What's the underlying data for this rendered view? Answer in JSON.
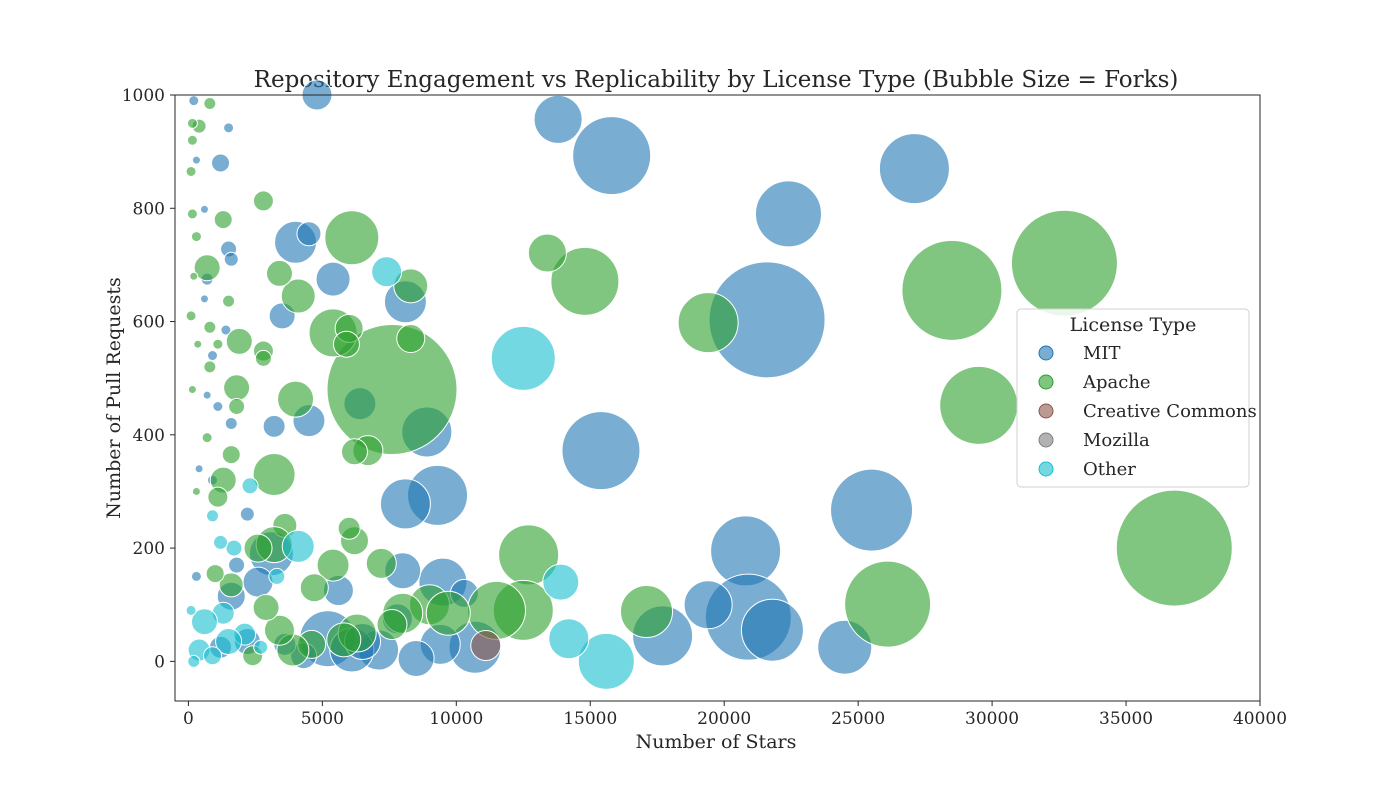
{
  "chart_data": {
    "type": "scatter",
    "title": "Repository Engagement vs Replicability by License Type (Bubble Size = Forks)",
    "xlabel": "Number of Stars",
    "ylabel": "Number of Pull Requests",
    "xlim": [
      -500,
      40000
    ],
    "ylim": [
      -70,
      1000
    ],
    "xticks": [
      0,
      5000,
      10000,
      15000,
      20000,
      25000,
      30000,
      35000,
      40000
    ],
    "yticks": [
      0,
      200,
      400,
      600,
      800,
      1000
    ],
    "grid": false,
    "legend": {
      "title": "License Type",
      "placement": "center-right"
    },
    "series": [
      {
        "name": "MIT",
        "color": "#1f77b4",
        "points": [
          {
            "x": 4800,
            "y": 1000,
            "r": 15
          },
          {
            "x": 13800,
            "y": 957,
            "r": 24
          },
          {
            "x": 15800,
            "y": 893,
            "r": 39
          },
          {
            "x": 27100,
            "y": 870,
            "r": 35
          },
          {
            "x": 22400,
            "y": 790,
            "r": 33
          },
          {
            "x": 21600,
            "y": 603,
            "r": 58
          },
          {
            "x": 15400,
            "y": 372,
            "r": 39
          },
          {
            "x": 25500,
            "y": 267,
            "r": 41
          },
          {
            "x": 20800,
            "y": 195,
            "r": 35
          },
          {
            "x": 20900,
            "y": 78,
            "r": 43
          },
          {
            "x": 21800,
            "y": 55,
            "r": 31
          },
          {
            "x": 17700,
            "y": 45,
            "r": 30
          },
          {
            "x": 19400,
            "y": 100,
            "r": 24
          },
          {
            "x": 24500,
            "y": 25,
            "r": 27
          },
          {
            "x": 9300,
            "y": 293,
            "r": 30
          },
          {
            "x": 8900,
            "y": 405,
            "r": 25
          },
          {
            "x": 8100,
            "y": 278,
            "r": 25
          },
          {
            "x": 8100,
            "y": 635,
            "r": 21
          },
          {
            "x": 4000,
            "y": 740,
            "r": 21
          },
          {
            "x": 4500,
            "y": 425,
            "r": 16
          },
          {
            "x": 5400,
            "y": 675,
            "r": 17
          },
          {
            "x": 6400,
            "y": 455,
            "r": 16
          },
          {
            "x": 3500,
            "y": 610,
            "r": 13
          },
          {
            "x": 3200,
            "y": 415,
            "r": 11
          },
          {
            "x": 4500,
            "y": 755,
            "r": 12
          },
          {
            "x": 9500,
            "y": 140,
            "r": 24
          },
          {
            "x": 10700,
            "y": 25,
            "r": 26
          },
          {
            "x": 9400,
            "y": 30,
            "r": 20
          },
          {
            "x": 8500,
            "y": 5,
            "r": 18
          },
          {
            "x": 7100,
            "y": 20,
            "r": 20
          },
          {
            "x": 5200,
            "y": 40,
            "r": 28
          },
          {
            "x": 6100,
            "y": 20,
            "r": 22
          },
          {
            "x": 7800,
            "y": 75,
            "r": 15
          },
          {
            "x": 6500,
            "y": 35,
            "r": 18
          },
          {
            "x": 5600,
            "y": 125,
            "r": 15
          },
          {
            "x": 8000,
            "y": 160,
            "r": 18
          },
          {
            "x": 3100,
            "y": 190,
            "r": 22
          },
          {
            "x": 2600,
            "y": 140,
            "r": 15
          },
          {
            "x": 1600,
            "y": 115,
            "r": 14
          },
          {
            "x": 2200,
            "y": 35,
            "r": 13
          },
          {
            "x": 1200,
            "y": 25,
            "r": 11
          },
          {
            "x": 4300,
            "y": 10,
            "r": 13
          },
          {
            "x": 3600,
            "y": 30,
            "r": 11
          },
          {
            "x": 10300,
            "y": 120,
            "r": 14
          },
          {
            "x": 1200,
            "y": 880,
            "r": 9
          },
          {
            "x": 1500,
            "y": 728,
            "r": 8
          },
          {
            "x": 1600,
            "y": 710,
            "r": 7
          },
          {
            "x": 1500,
            "y": 942,
            "r": 5
          },
          {
            "x": 200,
            "y": 990,
            "r": 5
          },
          {
            "x": 700,
            "y": 675,
            "r": 6
          },
          {
            "x": 600,
            "y": 640,
            "r": 4
          },
          {
            "x": 900,
            "y": 540,
            "r": 5
          },
          {
            "x": 1100,
            "y": 450,
            "r": 5
          },
          {
            "x": 1600,
            "y": 420,
            "r": 6
          },
          {
            "x": 700,
            "y": 470,
            "r": 4
          },
          {
            "x": 300,
            "y": 885,
            "r": 4
          },
          {
            "x": 600,
            "y": 798,
            "r": 4
          },
          {
            "x": 1400,
            "y": 585,
            "r": 5
          },
          {
            "x": 2200,
            "y": 260,
            "r": 7
          },
          {
            "x": 1800,
            "y": 170,
            "r": 8
          },
          {
            "x": 400,
            "y": 340,
            "r": 4
          },
          {
            "x": 900,
            "y": 320,
            "r": 5
          },
          {
            "x": 300,
            "y": 150,
            "r": 5
          }
        ]
      },
      {
        "name": "Apache",
        "color": "#2ca02c",
        "points": [
          {
            "x": 36800,
            "y": 200,
            "r": 58
          },
          {
            "x": 32700,
            "y": 703,
            "r": 53
          },
          {
            "x": 28500,
            "y": 655,
            "r": 50
          },
          {
            "x": 29500,
            "y": 452,
            "r": 39
          },
          {
            "x": 26100,
            "y": 101,
            "r": 43
          },
          {
            "x": 14800,
            "y": 671,
            "r": 34
          },
          {
            "x": 19400,
            "y": 598,
            "r": 30
          },
          {
            "x": 13400,
            "y": 721,
            "r": 19
          },
          {
            "x": 12700,
            "y": 188,
            "r": 30
          },
          {
            "x": 12500,
            "y": 90,
            "r": 30
          },
          {
            "x": 11500,
            "y": 90,
            "r": 29
          },
          {
            "x": 17100,
            "y": 88,
            "r": 26
          },
          {
            "x": 7600,
            "y": 480,
            "r": 65
          },
          {
            "x": 6100,
            "y": 748,
            "r": 27
          },
          {
            "x": 5400,
            "y": 580,
            "r": 24
          },
          {
            "x": 8300,
            "y": 663,
            "r": 17
          },
          {
            "x": 8300,
            "y": 570,
            "r": 14
          },
          {
            "x": 6000,
            "y": 588,
            "r": 14
          },
          {
            "x": 5900,
            "y": 560,
            "r": 13
          },
          {
            "x": 6700,
            "y": 372,
            "r": 15
          },
          {
            "x": 6200,
            "y": 370,
            "r": 13
          },
          {
            "x": 4100,
            "y": 645,
            "r": 17
          },
          {
            "x": 4000,
            "y": 463,
            "r": 18
          },
          {
            "x": 3200,
            "y": 330,
            "r": 21
          },
          {
            "x": 3400,
            "y": 685,
            "r": 13
          },
          {
            "x": 2800,
            "y": 813,
            "r": 10
          },
          {
            "x": 1900,
            "y": 565,
            "r": 13
          },
          {
            "x": 1800,
            "y": 483,
            "r": 13
          },
          {
            "x": 1600,
            "y": 365,
            "r": 9
          },
          {
            "x": 1300,
            "y": 780,
            "r": 9
          },
          {
            "x": 2800,
            "y": 548,
            "r": 10
          },
          {
            "x": 2800,
            "y": 535,
            "r": 8
          },
          {
            "x": 6200,
            "y": 213,
            "r": 14
          },
          {
            "x": 7200,
            "y": 173,
            "r": 15
          },
          {
            "x": 5400,
            "y": 170,
            "r": 16
          },
          {
            "x": 6000,
            "y": 235,
            "r": 11
          },
          {
            "x": 3600,
            "y": 240,
            "r": 12
          },
          {
            "x": 3200,
            "y": 206,
            "r": 18
          },
          {
            "x": 2600,
            "y": 200,
            "r": 14
          },
          {
            "x": 4700,
            "y": 130,
            "r": 14
          },
          {
            "x": 9000,
            "y": 100,
            "r": 20
          },
          {
            "x": 9700,
            "y": 85,
            "r": 22
          },
          {
            "x": 8000,
            "y": 85,
            "r": 20
          },
          {
            "x": 7600,
            "y": 65,
            "r": 15
          },
          {
            "x": 6300,
            "y": 50,
            "r": 19
          },
          {
            "x": 5800,
            "y": 38,
            "r": 17
          },
          {
            "x": 4600,
            "y": 30,
            "r": 14
          },
          {
            "x": 3900,
            "y": 20,
            "r": 16
          },
          {
            "x": 3400,
            "y": 55,
            "r": 15
          },
          {
            "x": 2900,
            "y": 95,
            "r": 13
          },
          {
            "x": 2400,
            "y": 10,
            "r": 10
          },
          {
            "x": 1300,
            "y": 320,
            "r": 13
          },
          {
            "x": 1100,
            "y": 290,
            "r": 10
          },
          {
            "x": 700,
            "y": 695,
            "r": 13
          },
          {
            "x": 400,
            "y": 945,
            "r": 7
          },
          {
            "x": 800,
            "y": 985,
            "r": 6
          },
          {
            "x": 150,
            "y": 950,
            "r": 5
          },
          {
            "x": 150,
            "y": 920,
            "r": 5
          },
          {
            "x": 100,
            "y": 865,
            "r": 5
          },
          {
            "x": 150,
            "y": 790,
            "r": 5
          },
          {
            "x": 300,
            "y": 750,
            "r": 5
          },
          {
            "x": 200,
            "y": 680,
            "r": 4
          },
          {
            "x": 100,
            "y": 610,
            "r": 5
          },
          {
            "x": 350,
            "y": 560,
            "r": 4
          },
          {
            "x": 800,
            "y": 520,
            "r": 6
          },
          {
            "x": 150,
            "y": 480,
            "r": 4
          },
          {
            "x": 700,
            "y": 395,
            "r": 5
          },
          {
            "x": 300,
            "y": 300,
            "r": 4
          },
          {
            "x": 1500,
            "y": 636,
            "r": 6
          },
          {
            "x": 1100,
            "y": 560,
            "r": 5
          },
          {
            "x": 1800,
            "y": 450,
            "r": 8
          },
          {
            "x": 800,
            "y": 590,
            "r": 6
          },
          {
            "x": 1600,
            "y": 135,
            "r": 12
          },
          {
            "x": 1000,
            "y": 155,
            "r": 9
          }
        ]
      },
      {
        "name": "Creative Commons",
        "color": "#8c564b",
        "points": [
          {
            "x": 11100,
            "y": 28,
            "r": 15
          }
        ]
      },
      {
        "name": "Mozilla",
        "color": "#7f7f7f",
        "points": []
      },
      {
        "name": "Other",
        "color": "#17becf",
        "points": [
          {
            "x": 12500,
            "y": 535,
            "r": 32
          },
          {
            "x": 15600,
            "y": 0,
            "r": 28
          },
          {
            "x": 14200,
            "y": 40,
            "r": 20
          },
          {
            "x": 13900,
            "y": 140,
            "r": 18
          },
          {
            "x": 7400,
            "y": 688,
            "r": 15
          },
          {
            "x": 4100,
            "y": 203,
            "r": 16
          },
          {
            "x": 2300,
            "y": 310,
            "r": 8
          },
          {
            "x": 2100,
            "y": 48,
            "r": 11
          },
          {
            "x": 1500,
            "y": 35,
            "r": 13
          },
          {
            "x": 1300,
            "y": 85,
            "r": 11
          },
          {
            "x": 1700,
            "y": 200,
            "r": 8
          },
          {
            "x": 1200,
            "y": 210,
            "r": 7
          },
          {
            "x": 900,
            "y": 257,
            "r": 6
          },
          {
            "x": 600,
            "y": 70,
            "r": 13
          },
          {
            "x": 400,
            "y": 20,
            "r": 11
          },
          {
            "x": 900,
            "y": 10,
            "r": 9
          },
          {
            "x": 200,
            "y": 0,
            "r": 6
          },
          {
            "x": 100,
            "y": 90,
            "r": 5
          },
          {
            "x": 3300,
            "y": 150,
            "r": 8
          },
          {
            "x": 2700,
            "y": 25,
            "r": 7
          }
        ]
      }
    ]
  }
}
